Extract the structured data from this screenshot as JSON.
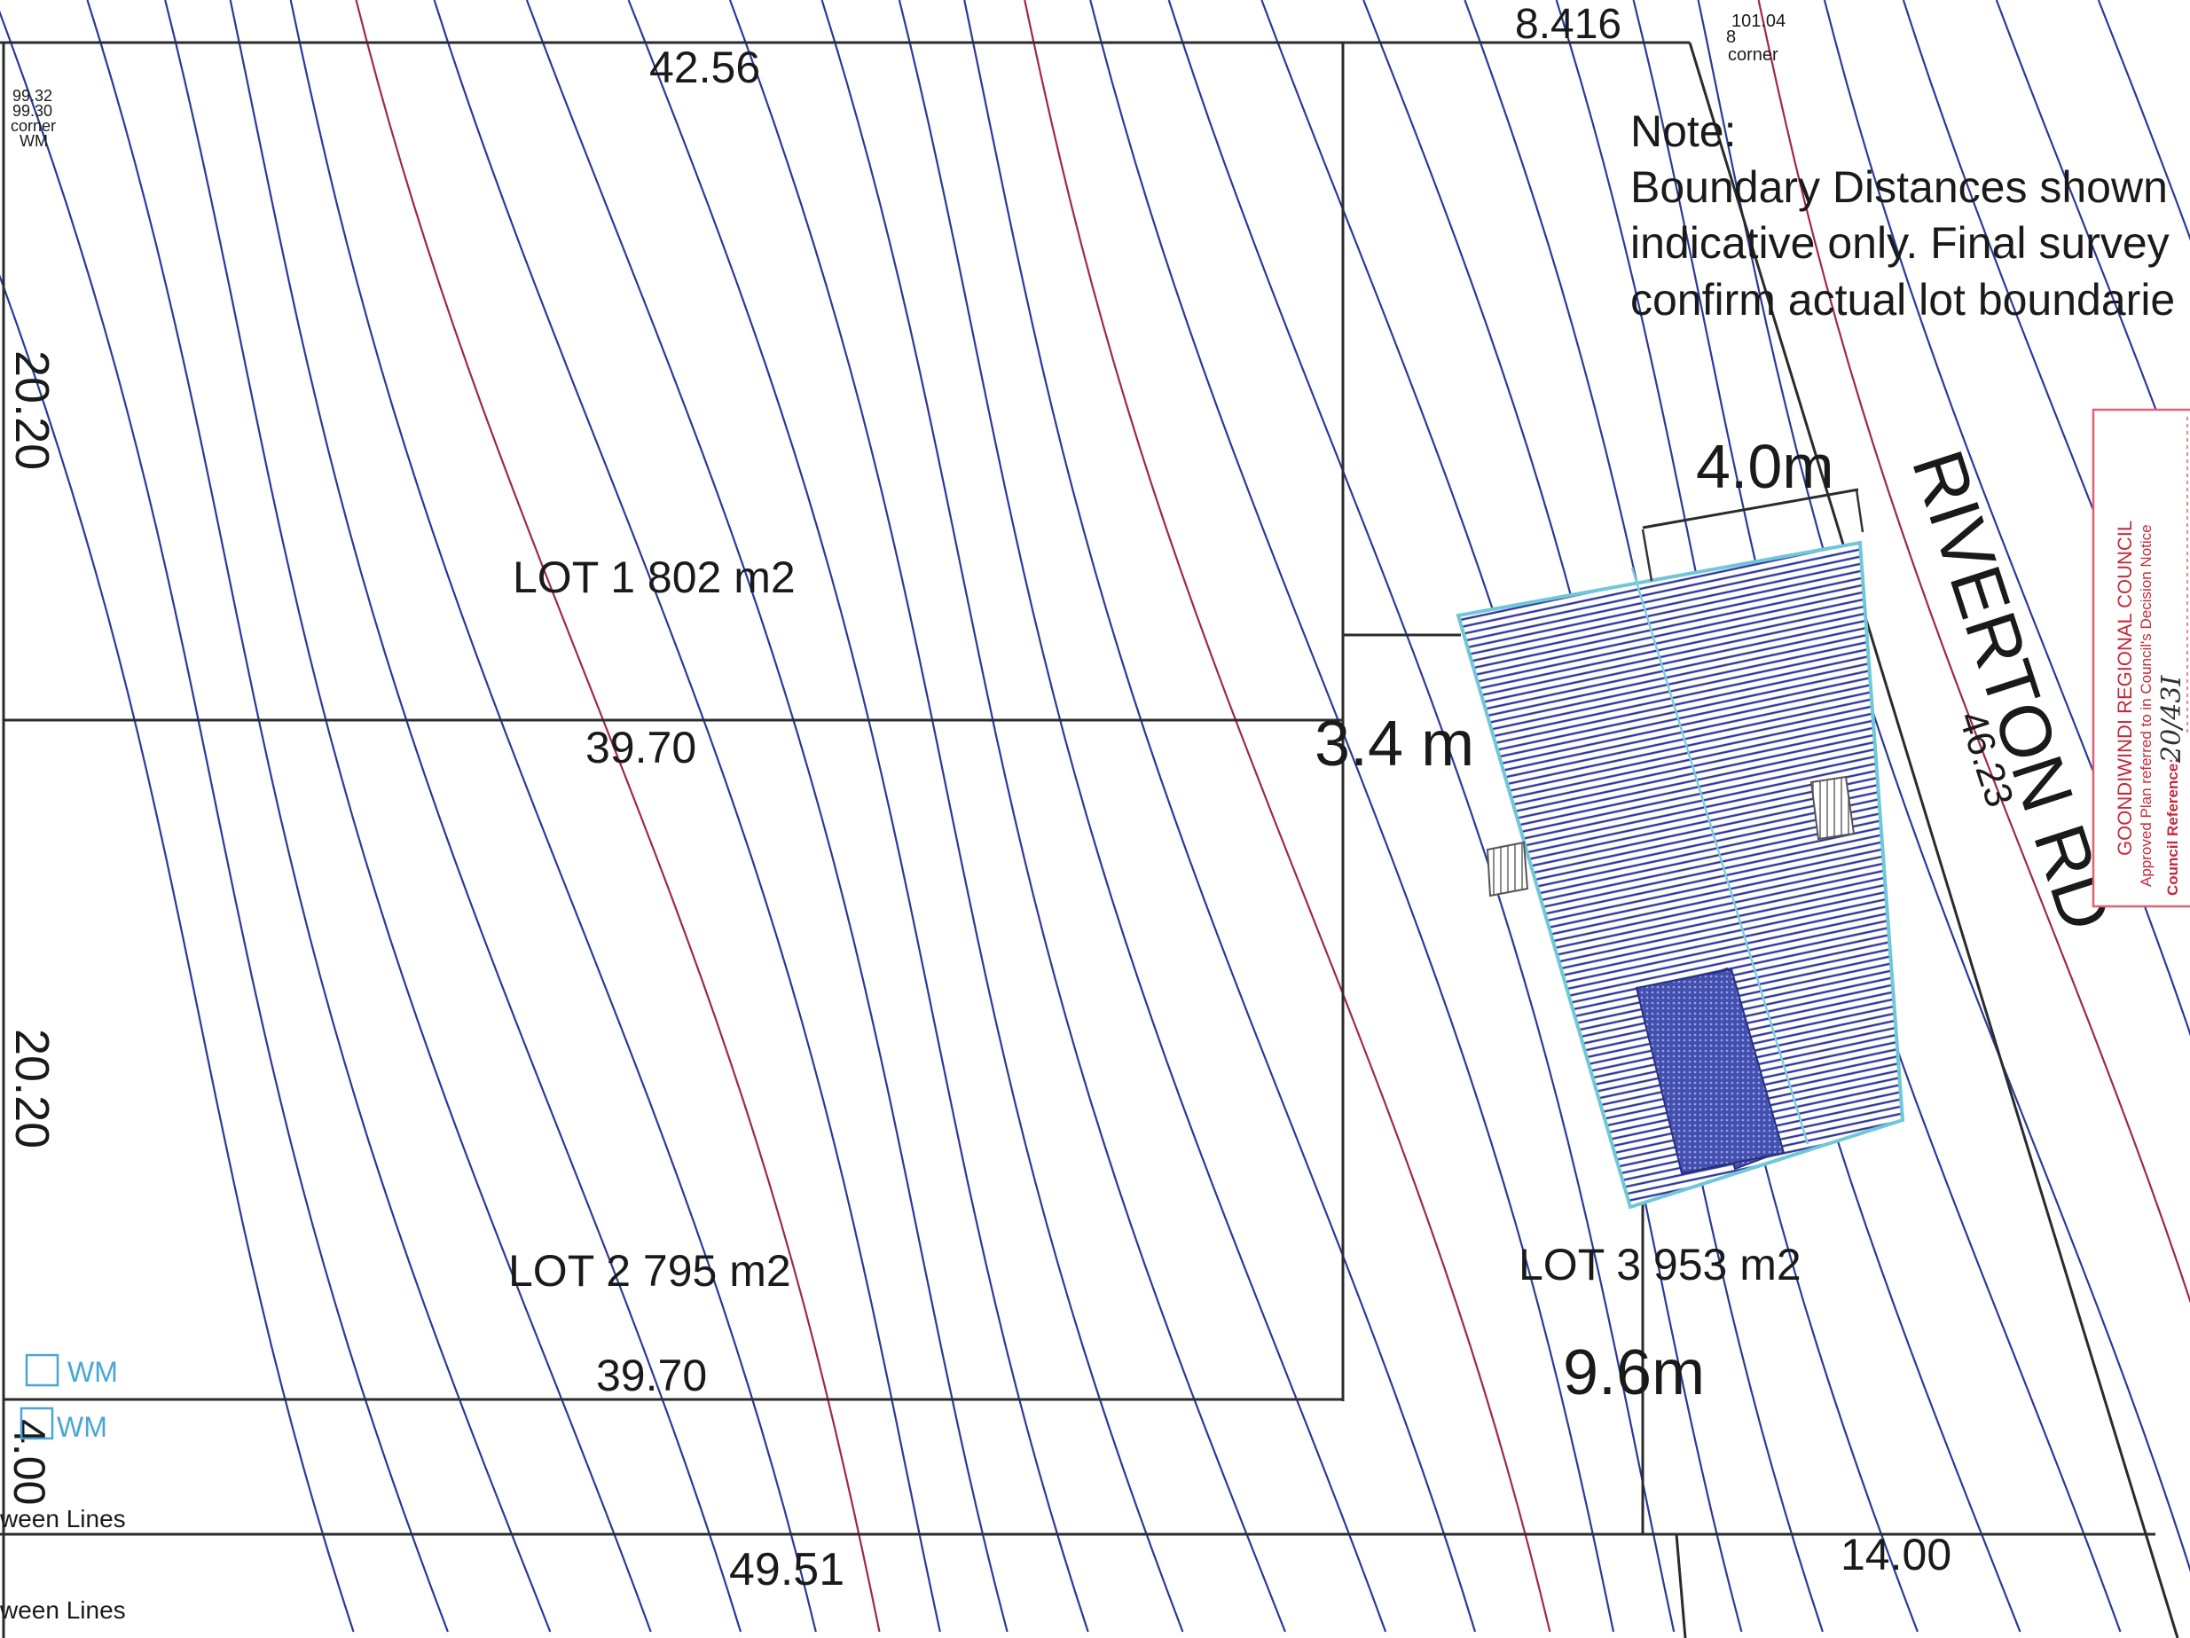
{
  "plan": {
    "note_title": "Note:",
    "note_lines": [
      "Boundary Distances shown",
      "indicative only. Final survey",
      "confirm actual lot boundarie"
    ],
    "road_name": "RIVERTON RD",
    "road_length": "46.23",
    "lots": [
      {
        "label": "LOT 1 802 m2",
        "frontage": "39.70"
      },
      {
        "label": "LOT 2 795 m2",
        "frontage": "39.70"
      },
      {
        "label": "LOT 3 953 m2"
      }
    ],
    "dimensions": {
      "top_left": "42.56",
      "top_right": "8.416",
      "left_upper": "20.20",
      "left_lower": "20.20",
      "left_bottom": "4.00",
      "bottom_mid": "49.51",
      "bottom_right": "14.00"
    },
    "setbacks": {
      "road": "4.0m",
      "side": "3.4 m",
      "rear": "9.6m"
    },
    "corner_top_right": {
      "value": "101.04",
      "sub": "8",
      "label": "corner"
    },
    "corner_top_left": {
      "values": [
        "99.32",
        "99.30"
      ],
      "label": "corner",
      "code": "WM"
    },
    "water_meters": [
      "WM",
      "WM"
    ],
    "between_lines": [
      "ween Lines",
      "ween Lines"
    ]
  },
  "stamp": {
    "council": "GOONDIWINDI REGIONAL COUNCIL",
    "line": "Approved Plan referred to in Council's Decision Notice",
    "ref_label": "Council Reference:",
    "ref_value": "20/43I"
  }
}
